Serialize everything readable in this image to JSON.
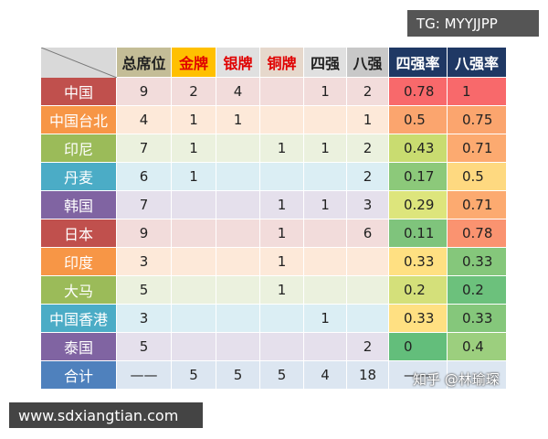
{
  "table": {
    "header": [
      "总席位",
      "金牌",
      "银牌",
      "铜牌",
      "四强",
      "八强",
      "四强率",
      "八强率"
    ],
    "row_labels": [
      "中国",
      "中国台北",
      "印尼",
      "丹麦",
      "韩国",
      "日本",
      "印度",
      "大马",
      "中国香港",
      "泰国",
      "合计"
    ],
    "rows": [
      [
        9,
        2,
        4,
        null,
        1,
        2,
        0.78,
        1
      ],
      [
        4,
        1,
        1,
        null,
        null,
        1,
        0.5,
        0.75
      ],
      [
        7,
        1,
        null,
        1,
        1,
        2,
        0.43,
        0.71
      ],
      [
        6,
        1,
        null,
        null,
        null,
        2,
        0.17,
        0.5
      ],
      [
        7,
        null,
        null,
        1,
        1,
        3,
        0.29,
        0.71
      ],
      [
        9,
        null,
        null,
        1,
        null,
        6,
        0.11,
        0.78
      ],
      [
        3,
        null,
        null,
        1,
        null,
        null,
        0.33,
        0.33
      ],
      [
        5,
        null,
        null,
        1,
        null,
        null,
        0.2,
        0.2
      ],
      [
        3,
        null,
        null,
        null,
        1,
        null,
        0.33,
        0.33
      ],
      [
        5,
        null,
        null,
        null,
        null,
        2,
        0,
        0.4
      ],
      [
        "——",
        5,
        5,
        5,
        4,
        18,
        "——",
        null
      ]
    ]
  },
  "watermarks": [
    "TG: MYYJJPP",
    "www.sdxiangtian.com",
    "知乎 @林瑜琛"
  ]
}
